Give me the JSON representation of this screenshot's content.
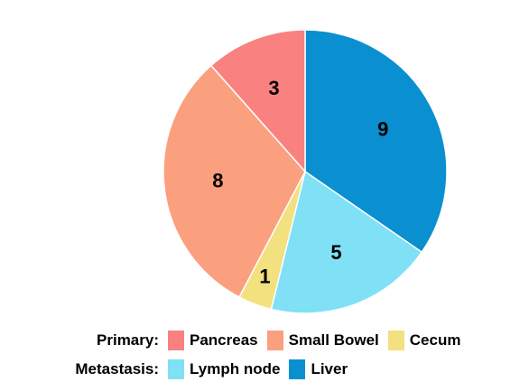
{
  "chart_data": {
    "type": "pie",
    "title": "",
    "slices": [
      {
        "label": "Liver",
        "value": 9,
        "color": "#0A8FD0",
        "group": "Metastasis"
      },
      {
        "label": "Lymph node",
        "value": 5,
        "color": "#7FE0F6",
        "group": "Metastasis"
      },
      {
        "label": "Cecum",
        "value": 1,
        "color": "#F3E07F",
        "group": "Primary"
      },
      {
        "label": "Small Bowel",
        "value": 8,
        "color": "#FBA07E",
        "group": "Primary"
      },
      {
        "label": "Pancreas",
        "value": 3,
        "color": "#F98180",
        "group": "Primary"
      }
    ],
    "start_angle_deg": 0,
    "direction": "clockwise",
    "legend_position": "bottom"
  },
  "legend": {
    "primary": {
      "title": "Primary:",
      "items": [
        {
          "label": "Pancreas",
          "color": "#F98180"
        },
        {
          "label": "Small Bowel",
          "color": "#FBA07E"
        },
        {
          "label": "Cecum",
          "color": "#F3E07F"
        }
      ]
    },
    "metastasis": {
      "title": "Metastasis:",
      "items": [
        {
          "label": "Lymph node",
          "color": "#7FE0F6"
        },
        {
          "label": "Liver",
          "color": "#0A8FD0"
        }
      ]
    }
  }
}
